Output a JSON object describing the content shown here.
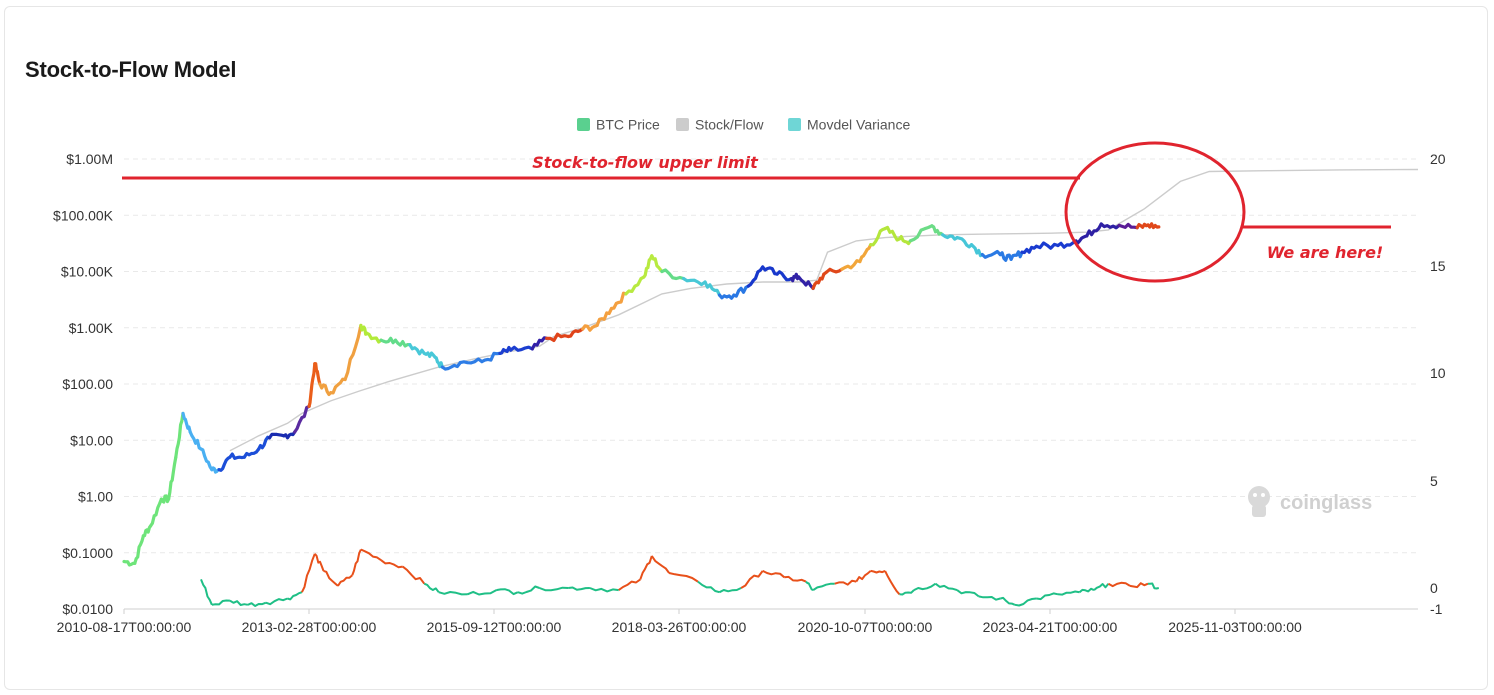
{
  "card": {
    "title": "Stock-to-Flow Model"
  },
  "chart_data": {
    "type": "line",
    "title": "Stock-to-Flow Model",
    "legend": {
      "placement": "top-center",
      "items": [
        {
          "name": "BTC Price",
          "color": "#5ad08f"
        },
        {
          "name": "Stock/Flow",
          "color": "#cccccc"
        },
        {
          "name": "Movdel Variance",
          "color": "#6fd6d6"
        }
      ]
    },
    "x_tick_labels": [
      "2010-08-17T00:00:00",
      "2013-02-28T00:00:00",
      "2015-09-12T00:00:00",
      "2018-03-26T00:00:00",
      "2020-10-07T00:00:00",
      "2023-04-21T00:00:00",
      "2025-11-03T00:00:00"
    ],
    "x_range": [
      2010.63,
      2028.6
    ],
    "y_left": {
      "scale": "log",
      "tick_labels": [
        "$0.0100",
        "$0.1000",
        "$1.00",
        "$10.00",
        "$100.00",
        "$1.00K",
        "$10.00K",
        "$100.00K",
        "$1.00M"
      ],
      "range": [
        0.01,
        1000000
      ]
    },
    "y_right": {
      "scale": "linear",
      "tick_labels": [
        "-1",
        "0",
        "5",
        "10",
        "15",
        "20"
      ]
    },
    "grid": true,
    "series": [
      {
        "name": "BTC Price",
        "axis": "left",
        "color_mode": "rainbow-gradient",
        "points": [
          [
            2010.63,
            0.07
          ],
          [
            2010.78,
            0.065
          ],
          [
            2010.9,
            0.2
          ],
          [
            2011.0,
            0.3
          ],
          [
            2011.15,
            0.9
          ],
          [
            2011.25,
            0.9
          ],
          [
            2011.35,
            5
          ],
          [
            2011.45,
            30
          ],
          [
            2011.55,
            14
          ],
          [
            2011.7,
            7
          ],
          [
            2011.85,
            3
          ],
          [
            2011.95,
            3
          ],
          [
            2012.1,
            5
          ],
          [
            2012.3,
            5
          ],
          [
            2012.5,
            7
          ],
          [
            2012.65,
            11
          ],
          [
            2012.85,
            12
          ],
          [
            2013.0,
            14
          ],
          [
            2013.2,
            40
          ],
          [
            2013.28,
            230
          ],
          [
            2013.35,
            100
          ],
          [
            2013.5,
            70
          ],
          [
            2013.7,
            120
          ],
          [
            2013.92,
            1100
          ],
          [
            2014.0,
            800
          ],
          [
            2014.2,
            600
          ],
          [
            2014.4,
            600
          ],
          [
            2014.6,
            500
          ],
          [
            2014.8,
            350
          ],
          [
            2014.95,
            300
          ],
          [
            2015.05,
            200
          ],
          [
            2015.3,
            240
          ],
          [
            2015.6,
            250
          ],
          [
            2015.85,
            350
          ],
          [
            2016.0,
            400
          ],
          [
            2016.3,
            420
          ],
          [
            2016.5,
            650
          ],
          [
            2016.8,
            700
          ],
          [
            2017.0,
            950
          ],
          [
            2017.2,
            1100
          ],
          [
            2017.4,
            2200
          ],
          [
            2017.6,
            4000
          ],
          [
            2017.85,
            8000
          ],
          [
            2017.96,
            19000
          ],
          [
            2018.1,
            10000
          ],
          [
            2018.4,
            7500
          ],
          [
            2018.7,
            6500
          ],
          [
            2018.9,
            3800
          ],
          [
            2019.1,
            3800
          ],
          [
            2019.3,
            5500
          ],
          [
            2019.5,
            12000
          ],
          [
            2019.7,
            9000
          ],
          [
            2019.9,
            7500
          ],
          [
            2020.0,
            8000
          ],
          [
            2020.2,
            5000
          ],
          [
            2020.35,
            9000
          ],
          [
            2020.6,
            11000
          ],
          [
            2020.85,
            15000
          ],
          [
            2021.0,
            30000
          ],
          [
            2021.2,
            58000
          ],
          [
            2021.4,
            38000
          ],
          [
            2021.55,
            35000
          ],
          [
            2021.85,
            65000
          ],
          [
            2022.0,
            45000
          ],
          [
            2022.2,
            40000
          ],
          [
            2022.4,
            30000
          ],
          [
            2022.55,
            20000
          ],
          [
            2022.8,
            20000
          ],
          [
            2022.95,
            16500
          ],
          [
            2023.1,
            22000
          ],
          [
            2023.3,
            28000
          ],
          [
            2023.6,
            29000
          ],
          [
            2023.85,
            35000
          ],
          [
            2024.0,
            43000
          ],
          [
            2024.2,
            70000
          ],
          [
            2024.45,
            66000
          ],
          [
            2024.7,
            60000
          ],
          [
            2024.85,
            67000
          ],
          [
            2025.0,
            62000
          ]
        ]
      },
      {
        "name": "Stock/Flow",
        "axis": "left",
        "color": "#cccccc",
        "points": [
          [
            2012.1,
            6.5
          ],
          [
            2012.5,
            12
          ],
          [
            2012.9,
            20
          ],
          [
            2013.1,
            30
          ],
          [
            2013.5,
            50
          ],
          [
            2013.9,
            75
          ],
          [
            2014.3,
            110
          ],
          [
            2014.7,
            155
          ],
          [
            2015.0,
            200
          ],
          [
            2015.5,
            280
          ],
          [
            2016.0,
            380
          ],
          [
            2016.4,
            470
          ],
          [
            2016.6,
            700
          ],
          [
            2017.0,
            1000
          ],
          [
            2017.5,
            1700
          ],
          [
            2017.9,
            3000
          ],
          [
            2018.1,
            4000
          ],
          [
            2018.5,
            5000
          ],
          [
            2019.0,
            6000
          ],
          [
            2019.5,
            6500
          ],
          [
            2020.0,
            6500
          ],
          [
            2020.25,
            7000
          ],
          [
            2020.4,
            22000
          ],
          [
            2020.8,
            35000
          ],
          [
            2021.2,
            40000
          ],
          [
            2021.5,
            42000
          ],
          [
            2022.0,
            45000
          ],
          [
            2022.5,
            46000
          ],
          [
            2023.0,
            47000
          ],
          [
            2023.5,
            48000
          ],
          [
            2024.0,
            50000
          ],
          [
            2024.3,
            55000
          ],
          [
            2024.8,
            130000
          ],
          [
            2025.3,
            400000
          ],
          [
            2025.7,
            600000
          ],
          [
            2026.5,
            620000
          ],
          [
            2027.5,
            640000
          ],
          [
            2028.6,
            650000
          ]
        ]
      },
      {
        "name": "Movdel Variance",
        "axis": "right",
        "color_mode": "red-green",
        "points": [
          [
            2011.7,
            0.4
          ],
          [
            2011.85,
            -0.8
          ],
          [
            2012.1,
            -0.6
          ],
          [
            2012.35,
            -0.8
          ],
          [
            2012.6,
            -0.7
          ],
          [
            2012.9,
            -0.5
          ],
          [
            2013.1,
            -0.2
          ],
          [
            2013.28,
            1.6
          ],
          [
            2013.4,
            0.8
          ],
          [
            2013.6,
            0.1
          ],
          [
            2013.8,
            0.6
          ],
          [
            2013.92,
            1.8
          ],
          [
            2014.2,
            1.3
          ],
          [
            2014.5,
            1.0
          ],
          [
            2014.8,
            0.2
          ],
          [
            2015.0,
            -0.2
          ],
          [
            2015.4,
            -0.3
          ],
          [
            2015.8,
            -0.1
          ],
          [
            2016.1,
            -0.2
          ],
          [
            2016.4,
            0.0
          ],
          [
            2016.8,
            0.0
          ],
          [
            2017.1,
            0.0
          ],
          [
            2017.5,
            -0.1
          ],
          [
            2017.8,
            0.4
          ],
          [
            2017.96,
            1.5
          ],
          [
            2018.2,
            0.7
          ],
          [
            2018.6,
            0.3
          ],
          [
            2018.9,
            -0.2
          ],
          [
            2019.2,
            0.0
          ],
          [
            2019.5,
            0.8
          ],
          [
            2019.8,
            0.5
          ],
          [
            2020.1,
            0.3
          ],
          [
            2020.2,
            -0.1
          ],
          [
            2020.5,
            0.2
          ],
          [
            2020.8,
            0.3
          ],
          [
            2021.0,
            0.8
          ],
          [
            2021.2,
            0.8
          ],
          [
            2021.4,
            -0.3
          ],
          [
            2021.6,
            -0.1
          ],
          [
            2021.9,
            0.2
          ],
          [
            2022.2,
            -0.1
          ],
          [
            2022.5,
            -0.4
          ],
          [
            2022.8,
            -0.5
          ],
          [
            2023.0,
            -0.8
          ],
          [
            2023.3,
            -0.5
          ],
          [
            2023.6,
            -0.3
          ],
          [
            2023.9,
            -0.2
          ],
          [
            2024.1,
            -0.1
          ],
          [
            2024.3,
            0.2
          ],
          [
            2024.6,
            0.1
          ],
          [
            2024.85,
            0.2
          ],
          [
            2025.0,
            0.0
          ]
        ]
      }
    ]
  },
  "annotations": {
    "upper_limit_label": "Stock-to-flow upper limit",
    "here_label": "We are here!"
  },
  "watermark": {
    "text": "coinglass"
  }
}
